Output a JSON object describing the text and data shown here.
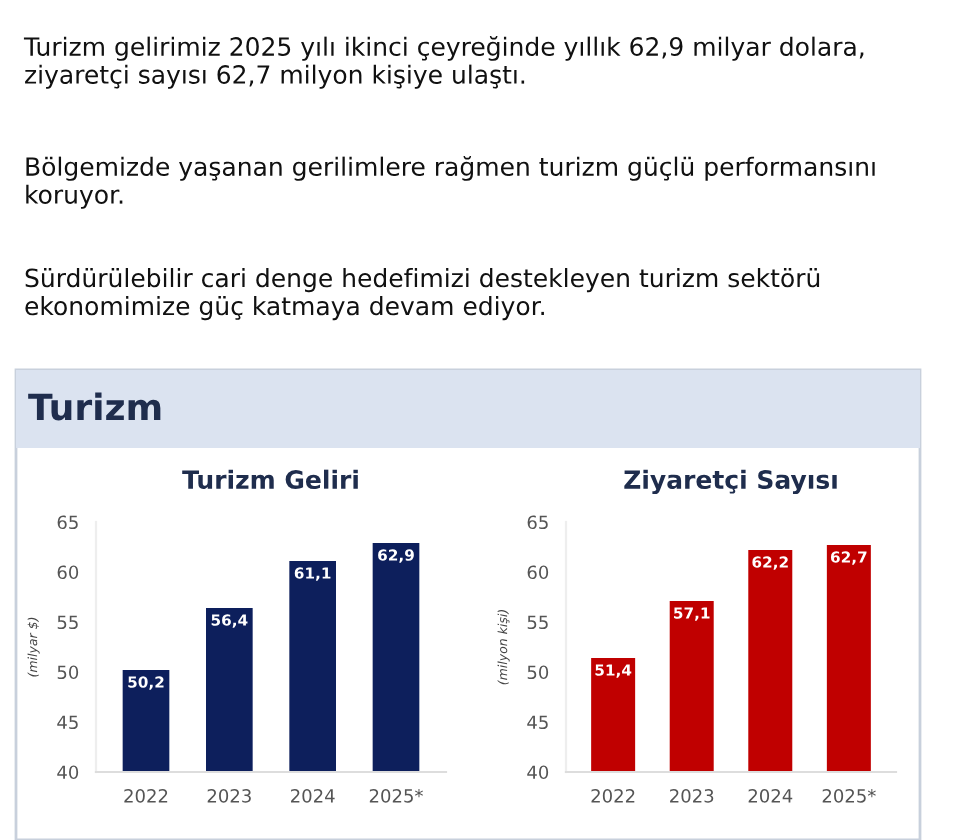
{
  "chart_data": [
    {
      "type": "bar",
      "title": "Turizm Geliri",
      "ylabel": "(milyar $)",
      "categories": [
        "2022",
        "2023",
        "2024",
        "2025*"
      ],
      "values": [
        50.2,
        56.4,
        61.1,
        62.9
      ],
      "value_labels": [
        "50,2",
        "56,4",
        "61,1",
        "62,9"
      ],
      "color": "#0d1f5c",
      "ylim": [
        40,
        65
      ],
      "yticks": [
        40,
        45,
        50,
        55,
        60,
        65
      ],
      "grid": false,
      "legend": false,
      "annotations": [
        "Turizm gelirimiz 2025 yılı ikinci çeyreğinde yıllık 62,9 milyar dolara, ziyaretçi sayısı 62,7 milyon kişiye ulaştı.",
        "Bölgemizde yaşanan gerilimlere rağmen turizm güçlü performansını koruyor.",
        "Sürdürülebilir cari denge hedefimizi destekleyen turizm sektörü ekonomimize güç katmaya devam ediyor.",
        "Turizm"
      ]
    },
    {
      "type": "bar",
      "title": "Ziyaretçi Sayısı",
      "ylabel": "(milyon kişi)",
      "categories": [
        "2022",
        "2023",
        "2024",
        "2025*"
      ],
      "values": [
        51.4,
        57.1,
        62.2,
        62.7
      ],
      "value_labels": [
        "51,4",
        "57,1",
        "62,2",
        "62,7"
      ],
      "color": "#c00000",
      "ylim": [
        40,
        65
      ],
      "yticks": [
        40,
        45,
        50,
        55,
        60,
        65
      ],
      "grid": false,
      "legend": false
    }
  ]
}
